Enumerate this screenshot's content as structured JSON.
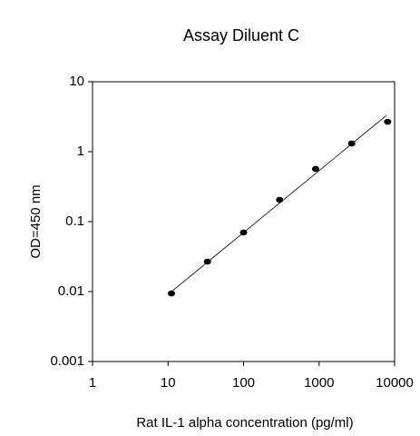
{
  "chart_data": {
    "type": "scatter",
    "title": "Assay Diluent C",
    "x_label": "Rat IL-1 alpha concentration (pg/ml)",
    "y_label": "OD=450 nm",
    "x": [
      11.1,
      33.3,
      100,
      300,
      900,
      2700,
      8100
    ],
    "values": [
      0.0094,
      0.0268,
      0.07,
      0.205,
      0.567,
      1.31,
      2.68
    ],
    "color": "#000000",
    "fit": {
      "x": [
        10,
        7800
      ],
      "y": [
        0.0091,
        3.3
      ]
    },
    "log_x": true,
    "log_y": true,
    "xlim": [
      1,
      10000
    ],
    "xticks": [
      1,
      10,
      100,
      1000,
      10000
    ],
    "ylim": [
      0.001,
      10
    ],
    "yticks": [
      0.001,
      0.01,
      0.1,
      1,
      10
    ]
  }
}
